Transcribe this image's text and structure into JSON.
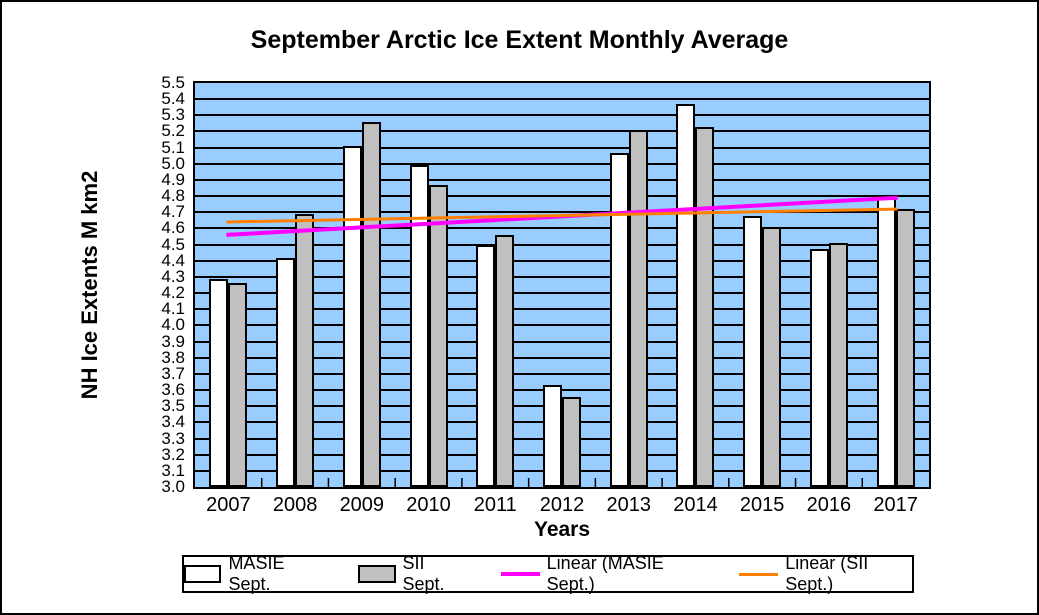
{
  "title": "September Arctic Ice Extent Monthly Average",
  "y_axis": {
    "title": "NH Ice Extents M km2",
    "tick_labels": [
      "5.5",
      "5.4",
      "5.3",
      "5.2",
      "5.1",
      "5.0",
      "4.9",
      "4.8",
      "4.7",
      "4.6",
      "4.5",
      "4.4",
      "4.3",
      "4.2",
      "4.1",
      "4.0",
      "3.9",
      "3.8",
      "3.7",
      "3.6",
      "3.5",
      "3.4",
      "3.3",
      "3.2",
      "3.1",
      "3.0"
    ]
  },
  "x_axis": {
    "title": "Years",
    "tick_labels": [
      "2007",
      "2008",
      "2009",
      "2010",
      "2011",
      "2012",
      "2013",
      "2014",
      "2015",
      "2016",
      "2017"
    ]
  },
  "legend": [
    {
      "label": "MASIE Sept.",
      "swatch": "bar",
      "color": "#FFFFFF"
    },
    {
      "label": "SII Sept.",
      "swatch": "bar",
      "color": "#C0C0C0"
    },
    {
      "label": "Linear (MASIE Sept.)",
      "swatch": "line",
      "color": "#FF00FF",
      "thickness": 4
    },
    {
      "label": "Linear (SII Sept.)",
      "swatch": "line",
      "color": "#FF8000",
      "thickness": 3
    }
  ],
  "colors": {
    "plot_background": "#99CCFF",
    "gridline": "#000000",
    "masie_bar": "#FFFFFF",
    "sii_bar": "#C0C0C0",
    "masie_trend": "#FF00FF",
    "sii_trend": "#FF8000",
    "text": "#000000"
  },
  "chart_data": {
    "type": "bar",
    "title": "September Arctic Ice Extent Monthly Average",
    "xlabel": "Years",
    "ylabel": "NH Ice Extents M km2",
    "ylim": [
      3.0,
      5.5
    ],
    "ytick_step": 0.1,
    "grid": "horizontal",
    "legend_position": "bottom",
    "plot_bg": "#99CCFF",
    "categories": [
      2007,
      2008,
      2009,
      2010,
      2011,
      2012,
      2013,
      2014,
      2015,
      2016,
      2017
    ],
    "series": [
      {
        "name": "MASIE Sept.",
        "type": "bar",
        "color": "#FFFFFF",
        "values": [
          4.29,
          4.42,
          5.11,
          4.99,
          4.5,
          3.63,
          5.07,
          5.37,
          4.68,
          4.47,
          4.79
        ]
      },
      {
        "name": "SII Sept.",
        "type": "bar",
        "color": "#C0C0C0",
        "values": [
          4.26,
          4.69,
          5.26,
          4.87,
          4.56,
          3.56,
          5.21,
          5.23,
          4.61,
          4.51,
          4.72
        ]
      },
      {
        "name": "Linear (MASIE Sept.)",
        "type": "trendline",
        "color": "#FF00FF",
        "stroke_width": 4,
        "start_value": 4.56,
        "end_value": 4.79
      },
      {
        "name": "Linear (SII Sept.)",
        "type": "trendline",
        "color": "#FF8000",
        "stroke_width": 3,
        "start_value": 4.64,
        "end_value": 4.72
      }
    ]
  }
}
